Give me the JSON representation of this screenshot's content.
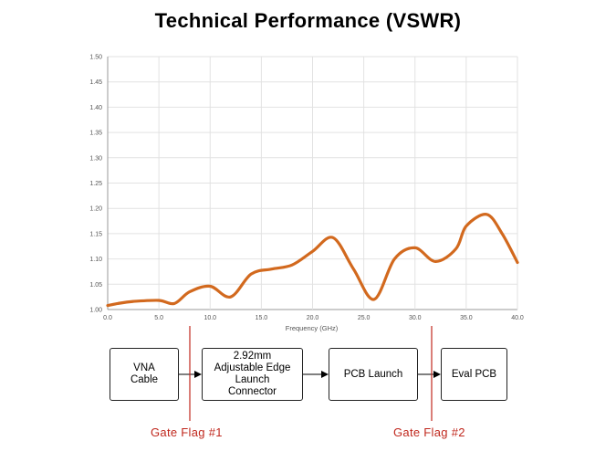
{
  "title": "Technical Performance (VSWR)",
  "chart_data": {
    "type": "line",
    "xlabel": "Frequency (GHz)",
    "ylabel": "",
    "xlim": [
      0,
      40
    ],
    "ylim": [
      1.0,
      1.5
    ],
    "x_ticks": [
      "0.0",
      "5.0",
      "10.0",
      "15.0",
      "20.0",
      "25.0",
      "30.0",
      "35.0",
      "40.0"
    ],
    "y_ticks": [
      "1.00",
      "1.05",
      "1.10",
      "1.15",
      "1.20",
      "1.25",
      "1.30",
      "1.35",
      "1.40",
      "1.45",
      "1.50"
    ],
    "grid": true,
    "series": [
      {
        "color": "#d2691e",
        "x": [
          0,
          1,
          2.5,
          5,
          6.5,
          8,
          10,
          12,
          14,
          16,
          18,
          20,
          22,
          24,
          26,
          28,
          30,
          32,
          34,
          35,
          37,
          38.5,
          40
        ],
        "values": [
          1.008,
          1.012,
          1.016,
          1.018,
          1.012,
          1.035,
          1.046,
          1.025,
          1.07,
          1.08,
          1.088,
          1.115,
          1.142,
          1.08,
          1.02,
          1.1,
          1.122,
          1.095,
          1.12,
          1.165,
          1.188,
          1.15,
          1.093
        ]
      }
    ]
  },
  "diagram": {
    "boxes": [
      "VNA\nCable",
      "2.92mm\nAdjustable Edge\nLaunch\nConnector",
      "PCB Launch",
      "Eval PCB"
    ],
    "gates": [
      "Gate Flag #1",
      "Gate Flag #2"
    ]
  }
}
